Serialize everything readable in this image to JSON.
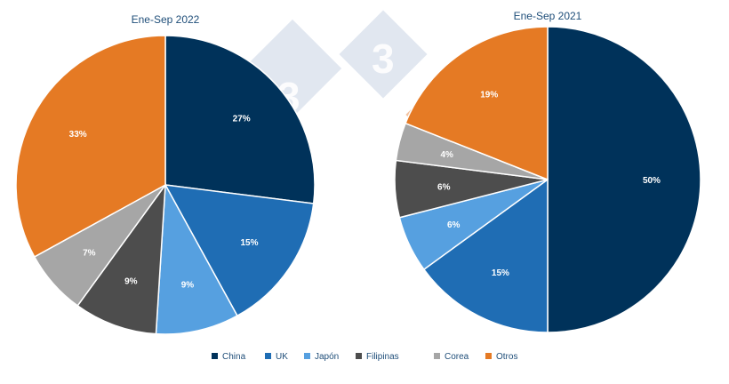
{
  "colors": {
    "China": "#00325a",
    "UK": "#1f6db4",
    "Japón": "#56a0e0",
    "Filipinas": "#4d4d4d",
    "Corea": "#a6a6a6",
    "Otros": "#e57a24"
  },
  "legend": [
    "China",
    "UK",
    "Japón",
    "Filipinas",
    "Corea",
    "Otros"
  ],
  "watermark": {
    "text": "3"
  },
  "chart_data": [
    {
      "type": "pie",
      "title": "Ene-Sep 2022",
      "categories": [
        "China",
        "UK",
        "Japón",
        "Filipinas",
        "Corea",
        "Otros"
      ],
      "values": [
        27,
        15,
        9,
        9,
        7,
        33
      ],
      "labels": [
        "27%",
        "15%",
        "9%",
        "9%",
        "7%",
        "33%"
      ],
      "legend_position": "bottom"
    },
    {
      "type": "pie",
      "title": "Ene-Sep 2021",
      "categories": [
        "China",
        "UK",
        "Japón",
        "Filipinas",
        "Corea",
        "Otros"
      ],
      "values": [
        50,
        15,
        6,
        6,
        4,
        19
      ],
      "labels": [
        "50%",
        "15%",
        "6%",
        "6%",
        "4%",
        "19%"
      ],
      "legend_position": "bottom"
    }
  ]
}
